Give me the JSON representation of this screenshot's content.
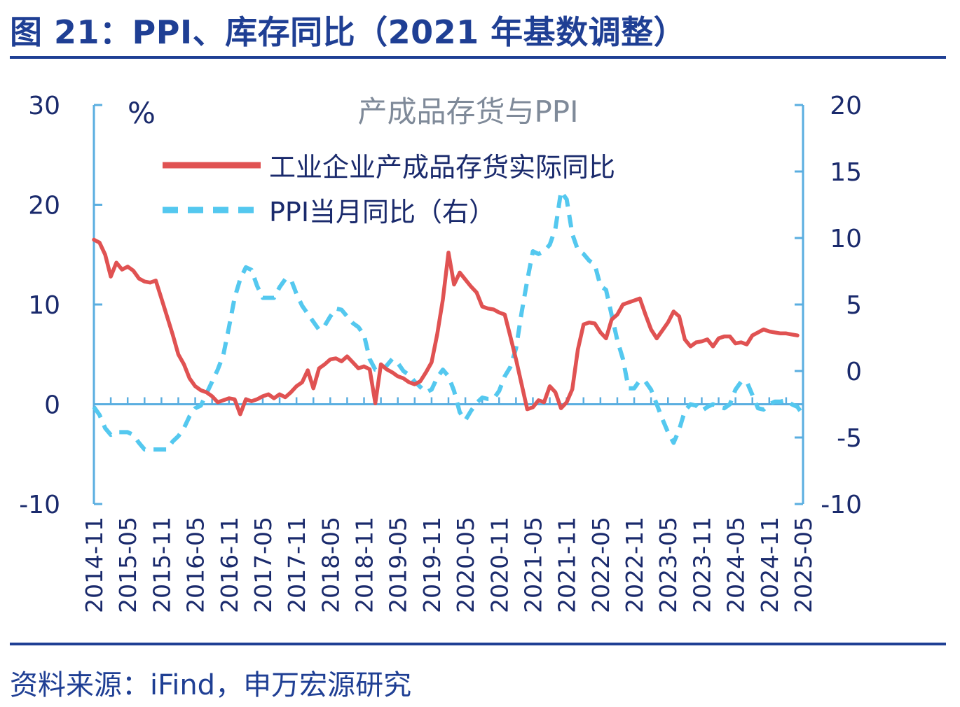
{
  "header": {
    "title": "图 21：PPI、库存同比（2021 年基数调整）"
  },
  "footer": {
    "source": "资料来源：iFind，申万宏源研究"
  },
  "colors": {
    "accent": "#1f3f94",
    "series_inventory": "#e05252",
    "series_ppi": "#54c8ef",
    "axis": "#5aaee0"
  },
  "chart_data": {
    "type": "line",
    "title": "产成品存货与PPI",
    "left_unit": "%",
    "left_ylim": [
      -10,
      30
    ],
    "left_ticks": [
      "30",
      "20",
      "10",
      "0",
      "-10"
    ],
    "right_ylim": [
      -10,
      20
    ],
    "right_ticks": [
      "20",
      "15",
      "10",
      "5",
      "0",
      "-5",
      "-10"
    ],
    "x_ticks": [
      "2014-11",
      "2015-05",
      "2015-11",
      "2016-05",
      "2016-11",
      "2017-05",
      "2017-11",
      "2018-05",
      "2018-11",
      "2019-05",
      "2019-11",
      "2020-05",
      "2020-11",
      "2021-05",
      "2021-11",
      "2022-05",
      "2022-11",
      "2023-05",
      "2023-11",
      "2024-05",
      "2024-11",
      "2025-05"
    ],
    "legend_position": "top-left",
    "series": [
      {
        "name": "工业企业产成品存货实际同比",
        "axis": "left",
        "style": "solid",
        "points": [
          [
            "2014-11",
            16.5
          ],
          [
            "2014-12",
            16.2
          ],
          [
            "2015-01",
            15.0
          ],
          [
            "2015-02",
            12.8
          ],
          [
            "2015-03",
            14.2
          ],
          [
            "2015-04",
            13.5
          ],
          [
            "2015-05",
            13.8
          ],
          [
            "2015-06",
            13.4
          ],
          [
            "2015-07",
            12.6
          ],
          [
            "2015-08",
            12.3
          ],
          [
            "2015-09",
            12.2
          ],
          [
            "2015-10",
            12.4
          ],
          [
            "2015-11",
            10.6
          ],
          [
            "2015-12",
            8.8
          ],
          [
            "2016-01",
            7.0
          ],
          [
            "2016-02",
            5.0
          ],
          [
            "2016-03",
            4.0
          ],
          [
            "2016-04",
            2.6
          ],
          [
            "2016-05",
            1.8
          ],
          [
            "2016-06",
            1.4
          ],
          [
            "2016-07",
            1.2
          ],
          [
            "2016-08",
            0.8
          ],
          [
            "2016-09",
            0.2
          ],
          [
            "2016-10",
            0.4
          ],
          [
            "2016-11",
            0.6
          ],
          [
            "2016-12",
            0.5
          ],
          [
            "2017-01",
            -1.0
          ],
          [
            "2017-02",
            0.5
          ],
          [
            "2017-03",
            0.3
          ],
          [
            "2017-04",
            0.5
          ],
          [
            "2017-05",
            0.8
          ],
          [
            "2017-06",
            1.0
          ],
          [
            "2017-07",
            0.6
          ],
          [
            "2017-08",
            1.0
          ],
          [
            "2017-09",
            0.7
          ],
          [
            "2017-10",
            1.2
          ],
          [
            "2017-11",
            1.8
          ],
          [
            "2017-12",
            2.2
          ],
          [
            "2018-01",
            3.4
          ],
          [
            "2018-02",
            1.6
          ],
          [
            "2018-03",
            3.6
          ],
          [
            "2018-04",
            4.0
          ],
          [
            "2018-05",
            4.5
          ],
          [
            "2018-06",
            4.6
          ],
          [
            "2018-07",
            4.3
          ],
          [
            "2018-08",
            4.8
          ],
          [
            "2018-09",
            4.2
          ],
          [
            "2018-10",
            3.6
          ],
          [
            "2018-11",
            3.8
          ],
          [
            "2018-12",
            3.5
          ],
          [
            "2019-01",
            0.1
          ],
          [
            "2019-02",
            4.0
          ],
          [
            "2019-03",
            3.5
          ],
          [
            "2019-04",
            3.2
          ],
          [
            "2019-05",
            2.8
          ],
          [
            "2019-06",
            2.6
          ],
          [
            "2019-07",
            2.2
          ],
          [
            "2019-08",
            2.0
          ],
          [
            "2019-09",
            2.3
          ],
          [
            "2019-10",
            3.2
          ],
          [
            "2019-11",
            4.2
          ],
          [
            "2019-12",
            7.0
          ],
          [
            "2020-01",
            10.5
          ],
          [
            "2020-02",
            15.2
          ],
          [
            "2020-03",
            12.0
          ],
          [
            "2020-04",
            13.2
          ],
          [
            "2020-05",
            12.5
          ],
          [
            "2020-06",
            11.8
          ],
          [
            "2020-07",
            11.2
          ],
          [
            "2020-08",
            9.8
          ],
          [
            "2020-09",
            9.6
          ],
          [
            "2020-10",
            9.5
          ],
          [
            "2020-11",
            9.2
          ],
          [
            "2020-12",
            9.0
          ],
          [
            "2021-01",
            6.8
          ],
          [
            "2021-02",
            4.5
          ],
          [
            "2021-03",
            2.0
          ],
          [
            "2021-04",
            -0.5
          ],
          [
            "2021-05",
            -0.3
          ],
          [
            "2021-06",
            0.4
          ],
          [
            "2021-07",
            0.2
          ],
          [
            "2021-08",
            1.8
          ],
          [
            "2021-09",
            1.2
          ],
          [
            "2021-10",
            -0.4
          ],
          [
            "2021-11",
            0.2
          ],
          [
            "2021-12",
            1.5
          ],
          [
            "2022-01",
            5.5
          ],
          [
            "2022-02",
            8.0
          ],
          [
            "2022-03",
            8.2
          ],
          [
            "2022-04",
            8.1
          ],
          [
            "2022-05",
            7.2
          ],
          [
            "2022-06",
            6.6
          ],
          [
            "2022-07",
            8.5
          ],
          [
            "2022-08",
            9.0
          ],
          [
            "2022-09",
            10.0
          ],
          [
            "2022-10",
            10.2
          ],
          [
            "2022-11",
            10.4
          ],
          [
            "2022-12",
            10.6
          ],
          [
            "2023-01",
            9.0
          ],
          [
            "2023-02",
            7.5
          ],
          [
            "2023-03",
            6.6
          ],
          [
            "2023-04",
            7.4
          ],
          [
            "2023-05",
            8.2
          ],
          [
            "2023-06",
            9.3
          ],
          [
            "2023-07",
            8.8
          ],
          [
            "2023-08",
            6.5
          ],
          [
            "2023-09",
            5.8
          ],
          [
            "2023-10",
            6.2
          ],
          [
            "2023-11",
            6.3
          ],
          [
            "2023-12",
            6.5
          ],
          [
            "2024-01",
            5.8
          ],
          [
            "2024-02",
            6.6
          ],
          [
            "2024-03",
            6.8
          ],
          [
            "2024-04",
            6.8
          ],
          [
            "2024-05",
            6.1
          ],
          [
            "2024-06",
            6.2
          ],
          [
            "2024-07",
            6.0
          ],
          [
            "2024-08",
            6.9
          ],
          [
            "2024-09",
            7.2
          ],
          [
            "2024-10",
            7.5
          ],
          [
            "2024-11",
            7.3
          ],
          [
            "2024-12",
            7.2
          ],
          [
            "2025-01",
            7.1
          ],
          [
            "2025-02",
            7.1
          ],
          [
            "2025-03",
            7.0
          ],
          [
            "2025-04",
            6.9
          ]
        ]
      },
      {
        "name": "PPI当月同比（右）",
        "axis": "right",
        "style": "dashed",
        "points": [
          [
            "2014-11",
            -2.7
          ],
          [
            "2014-12",
            -3.3
          ],
          [
            "2015-01",
            -4.3
          ],
          [
            "2015-02",
            -4.8
          ],
          [
            "2015-03",
            -4.6
          ],
          [
            "2015-04",
            -4.6
          ],
          [
            "2015-05",
            -4.6
          ],
          [
            "2015-06",
            -4.8
          ],
          [
            "2015-07",
            -5.4
          ],
          [
            "2015-08",
            -5.9
          ],
          [
            "2015-09",
            -5.9
          ],
          [
            "2015-10",
            -5.9
          ],
          [
            "2015-11",
            -5.9
          ],
          [
            "2015-12",
            -5.9
          ],
          [
            "2016-01",
            -5.3
          ],
          [
            "2016-02",
            -4.9
          ],
          [
            "2016-03",
            -4.3
          ],
          [
            "2016-04",
            -3.4
          ],
          [
            "2016-05",
            -2.8
          ],
          [
            "2016-06",
            -2.6
          ],
          [
            "2016-07",
            -1.7
          ],
          [
            "2016-08",
            -0.8
          ],
          [
            "2016-09",
            0.1
          ],
          [
            "2016-10",
            1.2
          ],
          [
            "2016-11",
            3.3
          ],
          [
            "2016-12",
            5.5
          ],
          [
            "2017-01",
            6.9
          ],
          [
            "2017-02",
            7.8
          ],
          [
            "2017-03",
            7.6
          ],
          [
            "2017-04",
            6.4
          ],
          [
            "2017-05",
            5.5
          ],
          [
            "2017-06",
            5.5
          ],
          [
            "2017-07",
            5.5
          ],
          [
            "2017-08",
            6.3
          ],
          [
            "2017-09",
            6.9
          ],
          [
            "2017-10",
            6.9
          ],
          [
            "2017-11",
            5.8
          ],
          [
            "2017-12",
            4.9
          ],
          [
            "2018-01",
            4.3
          ],
          [
            "2018-02",
            3.7
          ],
          [
            "2018-03",
            3.1
          ],
          [
            "2018-04",
            3.4
          ],
          [
            "2018-05",
            4.1
          ],
          [
            "2018-06",
            4.7
          ],
          [
            "2018-07",
            4.6
          ],
          [
            "2018-08",
            4.1
          ],
          [
            "2018-09",
            3.6
          ],
          [
            "2018-10",
            3.3
          ],
          [
            "2018-11",
            2.7
          ],
          [
            "2018-12",
            0.9
          ],
          [
            "2019-01",
            0.1
          ],
          [
            "2019-02",
            0.1
          ],
          [
            "2019-03",
            0.4
          ],
          [
            "2019-04",
            0.9
          ],
          [
            "2019-05",
            0.6
          ],
          [
            "2019-06",
            0.0
          ],
          [
            "2019-07",
            -0.3
          ],
          [
            "2019-08",
            -0.8
          ],
          [
            "2019-09",
            -1.2
          ],
          [
            "2019-10",
            -1.6
          ],
          [
            "2019-11",
            -1.4
          ],
          [
            "2019-12",
            -0.5
          ],
          [
            "2020-01",
            0.1
          ],
          [
            "2020-02",
            -0.4
          ],
          [
            "2020-03",
            -1.5
          ],
          [
            "2020-04",
            -3.1
          ],
          [
            "2020-05",
            -3.7
          ],
          [
            "2020-06",
            -3.0
          ],
          [
            "2020-07",
            -2.4
          ],
          [
            "2020-08",
            -2.0
          ],
          [
            "2020-09",
            -2.1
          ],
          [
            "2020-10",
            -2.1
          ],
          [
            "2020-11",
            -1.5
          ],
          [
            "2020-12",
            -0.4
          ],
          [
            "2021-01",
            0.3
          ],
          [
            "2021-02",
            1.7
          ],
          [
            "2021-03",
            4.4
          ],
          [
            "2021-04",
            6.8
          ],
          [
            "2021-05",
            9.0
          ],
          [
            "2021-06",
            8.8
          ],
          [
            "2021-07",
            9.0
          ],
          [
            "2021-08",
            9.5
          ],
          [
            "2021-09",
            10.7
          ],
          [
            "2021-10",
            13.5
          ],
          [
            "2021-11",
            12.9
          ],
          [
            "2021-12",
            10.3
          ],
          [
            "2022-01",
            9.1
          ],
          [
            "2022-02",
            8.8
          ],
          [
            "2022-03",
            8.3
          ],
          [
            "2022-04",
            8.0
          ],
          [
            "2022-05",
            6.4
          ],
          [
            "2022-06",
            6.1
          ],
          [
            "2022-07",
            4.2
          ],
          [
            "2022-08",
            2.3
          ],
          [
            "2022-09",
            0.9
          ],
          [
            "2022-10",
            -1.3
          ],
          [
            "2022-11",
            -1.3
          ],
          [
            "2022-12",
            -0.7
          ],
          [
            "2023-01",
            -0.8
          ],
          [
            "2023-02",
            -1.4
          ],
          [
            "2023-03",
            -2.5
          ],
          [
            "2023-04",
            -3.6
          ],
          [
            "2023-05",
            -4.6
          ],
          [
            "2023-06",
            -5.4
          ],
          [
            "2023-07",
            -4.4
          ],
          [
            "2023-08",
            -3.0
          ],
          [
            "2023-09",
            -2.5
          ],
          [
            "2023-10",
            -2.6
          ],
          [
            "2023-11",
            -3.0
          ],
          [
            "2023-12",
            -2.7
          ],
          [
            "2024-01",
            -2.5
          ],
          [
            "2024-02",
            -2.7
          ],
          [
            "2024-03",
            -2.8
          ],
          [
            "2024-04",
            -2.5
          ],
          [
            "2024-05",
            -1.4
          ],
          [
            "2024-06",
            -0.8
          ],
          [
            "2024-07",
            -0.8
          ],
          [
            "2024-08",
            -1.8
          ],
          [
            "2024-09",
            -2.8
          ],
          [
            "2024-10",
            -2.9
          ],
          [
            "2024-11",
            -2.5
          ],
          [
            "2024-12",
            -2.3
          ],
          [
            "2025-01",
            -2.3
          ],
          [
            "2025-02",
            -2.2
          ],
          [
            "2025-03",
            -2.5
          ],
          [
            "2025-04",
            -2.7
          ],
          [
            "2025-05",
            -3.3
          ]
        ]
      }
    ]
  }
}
